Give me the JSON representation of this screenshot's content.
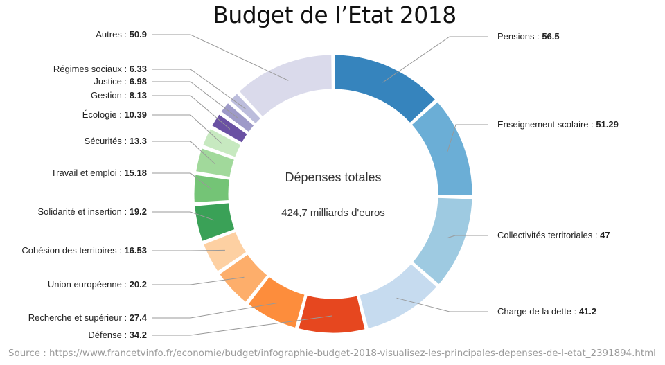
{
  "page": {
    "title": "Budget de l’Etat 2018",
    "source": "Source : https://www.francetvinfo.fr/economie/budget/infographie-budget-2018-visualisez-les-principales-depenses-de-l-etat_2391894.html"
  },
  "chart_data": {
    "type": "pie",
    "variant": "donut",
    "title": "Budget de l’Etat 2018",
    "center_label": "Dépenses totales",
    "center_value": "424,7 milliards d'euros",
    "legend": "none (labels with leader lines)",
    "slices": [
      {
        "label": "Pensions",
        "value": 56.5,
        "value_text": "56.5",
        "color": "#3684bd",
        "side": "right"
      },
      {
        "label": "Enseignement scolaire",
        "value": 51.29,
        "value_text": "51.29",
        "color": "#6baed6",
        "side": "right"
      },
      {
        "label": "Collectivités territoriales",
        "value": 47,
        "value_text": "47",
        "color": "#9ecae1",
        "side": "right"
      },
      {
        "label": "Charge de la dette",
        "value": 41.2,
        "value_text": "41.2",
        "color": "#c6dbef",
        "side": "right"
      },
      {
        "label": "Défense",
        "value": 34.2,
        "value_text": "34.2",
        "color": "#e6471f",
        "side": "left"
      },
      {
        "label": "Recherche et supérieur",
        "value": 27.4,
        "value_text": "27.4",
        "color": "#fd8d3c",
        "side": "left"
      },
      {
        "label": "Union européenne",
        "value": 20.2,
        "value_text": "20.2",
        "color": "#fdae6b",
        "side": "left"
      },
      {
        "label": "Cohésion des territoires",
        "value": 16.53,
        "value_text": "16.53",
        "color": "#fdd0a2",
        "side": "left"
      },
      {
        "label": "Solidarité et insertion",
        "value": 19.2,
        "value_text": "19.2",
        "color": "#3aa157",
        "side": "left"
      },
      {
        "label": "Travail et emploi",
        "value": 15.18,
        "value_text": "15.18",
        "color": "#74c476",
        "side": "left"
      },
      {
        "label": "Sécurités",
        "value": 13.3,
        "value_text": "13.3",
        "color": "#a1d99b",
        "side": "left"
      },
      {
        "label": "Écologie",
        "value": 10.39,
        "value_text": "10.39",
        "color": "#c7e9c0",
        "side": "left"
      },
      {
        "label": "Gestion",
        "value": 8.13,
        "value_text": "8.13",
        "color": "#6a51a3",
        "side": "left"
      },
      {
        "label": "Justice",
        "value": 6.98,
        "value_text": "6.98",
        "color": "#9e9ac8",
        "side": "left"
      },
      {
        "label": "Régimes sociaux",
        "value": 6.33,
        "value_text": "6.33",
        "color": "#bcbddc",
        "side": "left"
      },
      {
        "label": "Autres",
        "value": 50.9,
        "value_text": "50.9",
        "color": "#dadaeb",
        "side": "left"
      }
    ]
  }
}
